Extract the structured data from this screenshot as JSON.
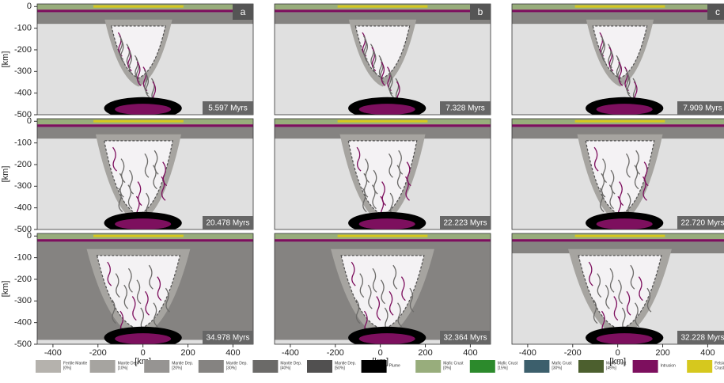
{
  "figure": {
    "panels": [
      {
        "letter": "a",
        "time": "5.597 Myrs"
      },
      {
        "letter": "b",
        "time": "7.328 Myrs"
      },
      {
        "letter": "c",
        "time": "7.909 Myrs"
      },
      {
        "time": "20.478 Myrs"
      },
      {
        "time": "22.223 Myrs"
      },
      {
        "time": "22.720 Myrs"
      },
      {
        "time": "34.978 Myrs"
      },
      {
        "time": "32.364 Myrs"
      },
      {
        "time": "32.228 Myrs"
      }
    ],
    "y_axis_label": "[km]",
    "x_axis_label": "[km]",
    "xlim": [
      -470,
      490
    ],
    "ylim": [
      -500,
      12
    ],
    "xticks": [
      -400,
      -200,
      0,
      200,
      400
    ],
    "yticks": [
      0,
      -100,
      -200,
      -300,
      -400,
      -500
    ],
    "legend": [
      {
        "label": [
          "Fertile Mantle",
          "[0%]"
        ],
        "color": "#b5b2ad"
      },
      {
        "label": [
          "Mantle Dep.",
          "[10%]"
        ],
        "color": "#a6a4a0"
      },
      {
        "label": [
          "Mantle Dep.",
          "[20%]"
        ],
        "color": "#969492"
      },
      {
        "label": [
          "Mantle Dep.",
          "[30%]"
        ],
        "color": "#858381"
      },
      {
        "label": [
          "Mantle Dep.",
          "[40%]"
        ],
        "color": "#6b6a68"
      },
      {
        "label": [
          "Mantle Dep.",
          "[50%]"
        ],
        "color": "#515050"
      },
      {
        "label": [
          "Plume"
        ],
        "color": "#000000"
      },
      {
        "label": [
          "Mafic Crust",
          "[0%]"
        ],
        "color": "#98ad7c"
      },
      {
        "label": [
          "Mafic Crust",
          "[15%]"
        ],
        "color": "#2c8a2c"
      },
      {
        "label": [
          "Mafic Crust",
          "[30%]"
        ],
        "color": "#3c5f6c"
      },
      {
        "label": [
          "Mafic Crust",
          "[45%]"
        ],
        "color": "#4c5f2e"
      },
      {
        "label": [
          "Intrusion"
        ],
        "color": "#7d0f5e"
      },
      {
        "label": [
          "Felsic",
          "Crust"
        ],
        "color": "#d6c81e"
      }
    ]
  }
}
